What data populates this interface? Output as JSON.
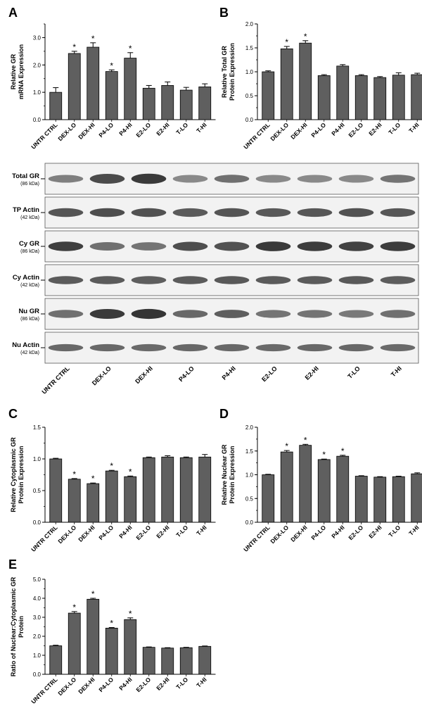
{
  "panel_letters": [
    "A",
    "B",
    "C",
    "D",
    "E"
  ],
  "significance_marker": "*",
  "colors": {
    "bar": "#5f5f5f",
    "axis": "#000000",
    "blot_bg": "#f2f2f2",
    "band": "#202020"
  },
  "chart_data": [
    {
      "type": "bar",
      "panel": "A",
      "ylabel": [
        "Relative GR",
        "mRNA Expression"
      ],
      "categories": [
        "UNTR CTRL",
        "DEX-LO",
        "DEX-HI",
        "P4-LO",
        "P4-HI",
        "E2-LO",
        "E2-HI",
        "T-LO",
        "T-HI"
      ],
      "values": [
        1.0,
        2.42,
        2.65,
        1.76,
        2.25,
        1.15,
        1.25,
        1.08,
        1.2
      ],
      "errors": [
        0.17,
        0.08,
        0.16,
        0.06,
        0.2,
        0.1,
        0.13,
        0.1,
        0.11
      ],
      "significant": [
        false,
        true,
        true,
        true,
        true,
        false,
        false,
        false,
        false
      ],
      "ylim": [
        0,
        3.5
      ],
      "yticks": [
        "0.0",
        "1.0",
        "2.0",
        "3.0"
      ],
      "ytick_values": [
        0,
        1,
        2,
        3
      ],
      "minor_step": 0.5,
      "grid": false
    },
    {
      "type": "bar",
      "panel": "B",
      "ylabel": [
        "Relative Total GR",
        "Protein Expression"
      ],
      "categories": [
        "UNTR CTRL",
        "DEX-LO",
        "DEX-HI",
        "P4-LO",
        "P4-HI",
        "E2-LO",
        "E2-HI",
        "T-LO",
        "T-HI"
      ],
      "values": [
        1.0,
        1.48,
        1.6,
        0.92,
        1.12,
        0.92,
        0.88,
        0.93,
        0.94
      ],
      "errors": [
        0.02,
        0.05,
        0.05,
        0.02,
        0.03,
        0.02,
        0.02,
        0.05,
        0.03
      ],
      "significant": [
        false,
        true,
        true,
        false,
        false,
        false,
        false,
        false,
        false
      ],
      "ylim": [
        0,
        2.0
      ],
      "yticks": [
        "0.0",
        "0.5",
        "1.0",
        "1.5",
        "2.0"
      ],
      "ytick_values": [
        0,
        0.5,
        1.0,
        1.5,
        2.0
      ],
      "minor_step": 0.25,
      "grid": false
    },
    {
      "type": "bar",
      "panel": "C",
      "ylabel": [
        "Relative Cytoplasmic GR",
        "Protein Expression"
      ],
      "categories": [
        "UNTR CTRL",
        "DEX-LO",
        "DEX-HI",
        "P4-LO",
        "P4-HI",
        "E2-LO",
        "E2-HI",
        "T-LO",
        "T-HI"
      ],
      "values": [
        1.0,
        0.68,
        0.61,
        0.81,
        0.72,
        1.02,
        1.03,
        1.02,
        1.03
      ],
      "errors": [
        0.01,
        0.01,
        0.01,
        0.01,
        0.01,
        0.01,
        0.02,
        0.01,
        0.04
      ],
      "significant": [
        false,
        true,
        true,
        true,
        true,
        false,
        false,
        false,
        false
      ],
      "ylim": [
        0,
        1.5
      ],
      "yticks": [
        "0.0",
        "0.5",
        "1.0",
        "1.5"
      ],
      "ytick_values": [
        0,
        0.5,
        1.0,
        1.5
      ],
      "minor_step": 0.25,
      "grid": false
    },
    {
      "type": "bar",
      "panel": "D",
      "ylabel": [
        "Relative Nuclear GR",
        "Protein Expression"
      ],
      "categories": [
        "UNTR CTRL",
        "DEX-LO",
        "DEX-HI",
        "P4-LO",
        "P4-HI",
        "E2-LO",
        "E2-HI",
        "T-LO",
        "T-HI"
      ],
      "values": [
        1.0,
        1.48,
        1.62,
        1.32,
        1.39,
        0.97,
        0.95,
        0.96,
        1.02
      ],
      "errors": [
        0.01,
        0.03,
        0.02,
        0.01,
        0.02,
        0.01,
        0.01,
        0.01,
        0.02
      ],
      "significant": [
        false,
        true,
        true,
        true,
        true,
        false,
        false,
        false,
        false
      ],
      "ylim": [
        0,
        2.0
      ],
      "yticks": [
        "0.0",
        "0.5",
        "1.0",
        "1.5",
        "2.0"
      ],
      "ytick_values": [
        0,
        0.5,
        1.0,
        1.5,
        2.0
      ],
      "minor_step": 0.25,
      "grid": false
    },
    {
      "type": "bar",
      "panel": "E",
      "ylabel": [
        "Ratio of Nuclear:Cytoplasmic GR",
        "Protein"
      ],
      "categories": [
        "UNTR CTRL",
        "DEX-LO",
        "DEX-HI",
        "P4-LO",
        "P4-HI",
        "E2-LO",
        "E2-HI",
        "T-LO",
        "T-HI"
      ],
      "values": [
        1.5,
        3.22,
        3.95,
        2.43,
        2.88,
        1.42,
        1.38,
        1.4,
        1.47
      ],
      "errors": [
        0.03,
        0.08,
        0.05,
        0.03,
        0.09,
        0.02,
        0.02,
        0.02,
        0.02
      ],
      "significant": [
        false,
        true,
        true,
        true,
        true,
        false,
        false,
        false,
        false
      ],
      "ylim": [
        0,
        5.0
      ],
      "yticks": [
        "0.0",
        "1.0",
        "2.0",
        "3.0",
        "4.0",
        "5.0"
      ],
      "ytick_values": [
        0,
        1,
        2,
        3,
        4,
        5
      ],
      "minor_step": 0.5,
      "grid": false
    }
  ],
  "blot": {
    "lanes": [
      "UNTR CTRL",
      "DEX-LO",
      "DEX-HI",
      "P4-LO",
      "P4-HI",
      "E2-LO",
      "E2-HI",
      "T-LO",
      "T-HI"
    ],
    "rows": [
      {
        "label": "Total GR",
        "kda": "(86 kDa)",
        "intensity": [
          0.55,
          0.8,
          0.88,
          0.5,
          0.62,
          0.5,
          0.5,
          0.5,
          0.6
        ],
        "thickness": [
          0.5,
          0.8,
          0.85,
          0.5,
          0.55,
          0.5,
          0.5,
          0.5,
          0.55
        ]
      },
      {
        "label": "TP Actin",
        "kda": "(42 kDa)",
        "intensity": [
          0.75,
          0.78,
          0.76,
          0.72,
          0.75,
          0.73,
          0.74,
          0.76,
          0.74
        ],
        "thickness": [
          0.65,
          0.65,
          0.65,
          0.62,
          0.65,
          0.62,
          0.63,
          0.65,
          0.63
        ]
      },
      {
        "label": "Cy GR",
        "kda": "(86 kDa)",
        "intensity": [
          0.85,
          0.62,
          0.6,
          0.78,
          0.76,
          0.88,
          0.86,
          0.84,
          0.86
        ],
        "thickness": [
          0.75,
          0.6,
          0.58,
          0.7,
          0.7,
          0.78,
          0.75,
          0.74,
          0.76
        ]
      },
      {
        "label": "Cy Actin",
        "kda": "(42 kDa)",
        "intensity": [
          0.72,
          0.72,
          0.7,
          0.72,
          0.73,
          0.72,
          0.72,
          0.73,
          0.71
        ],
        "thickness": [
          0.55,
          0.55,
          0.55,
          0.55,
          0.55,
          0.55,
          0.55,
          0.55,
          0.55
        ]
      },
      {
        "label": "Nu GR",
        "kda": "(86 kDa)",
        "intensity": [
          0.62,
          0.88,
          0.9,
          0.66,
          0.7,
          0.6,
          0.6,
          0.58,
          0.62
        ],
        "thickness": [
          0.55,
          0.8,
          0.82,
          0.55,
          0.58,
          0.52,
          0.52,
          0.5,
          0.55
        ]
      },
      {
        "label": "Nu Actin",
        "kda": "(42 kDa)",
        "intensity": [
          0.66,
          0.66,
          0.65,
          0.66,
          0.66,
          0.65,
          0.66,
          0.66,
          0.65
        ],
        "thickness": [
          0.42,
          0.42,
          0.42,
          0.42,
          0.42,
          0.42,
          0.42,
          0.42,
          0.42
        ]
      }
    ]
  }
}
